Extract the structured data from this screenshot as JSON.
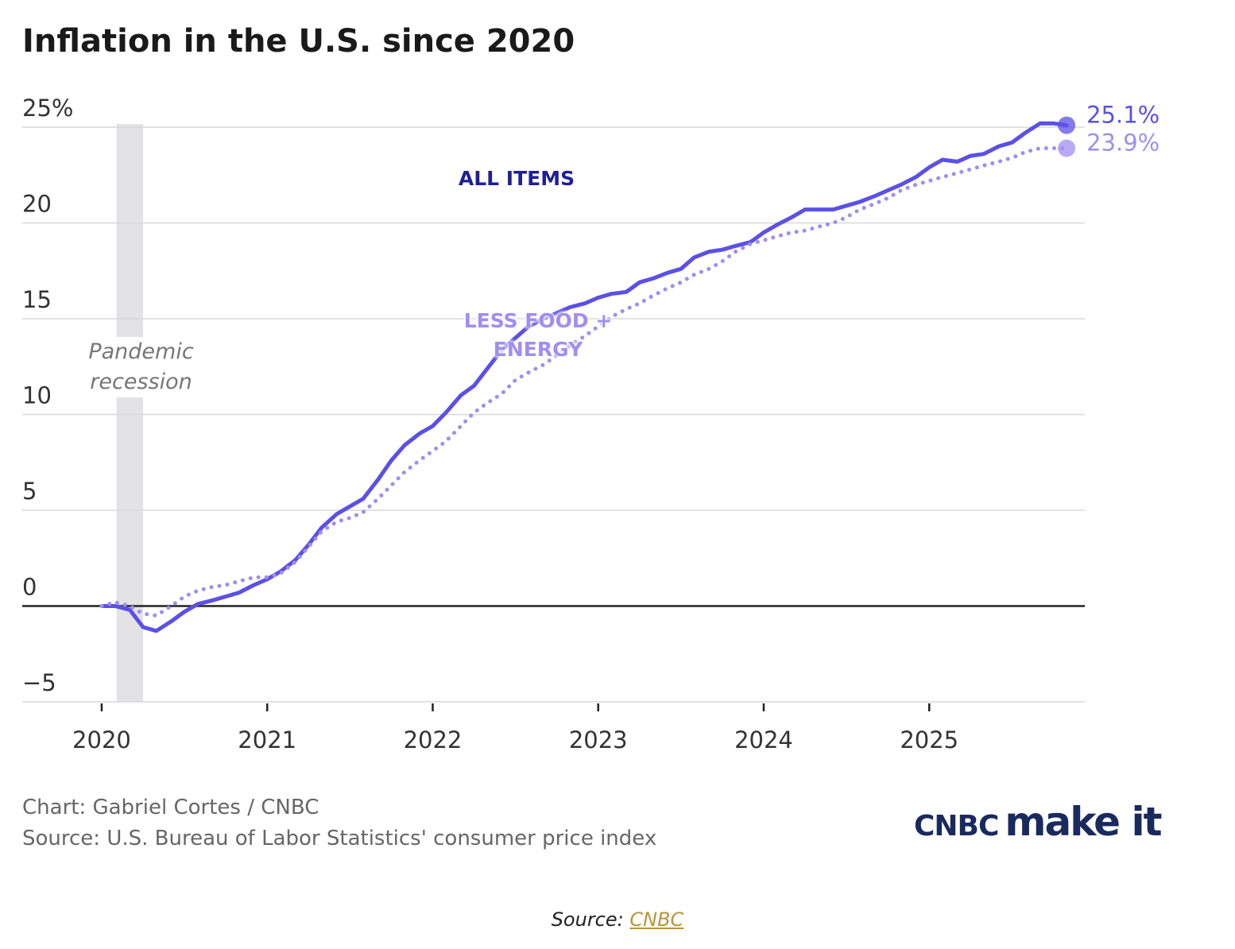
{
  "chart_data": {
    "type": "line",
    "title": "Inflation in the U.S. since 2020",
    "x": [
      2020.0,
      2020.08,
      2020.17,
      2020.25,
      2020.33,
      2020.42,
      2020.5,
      2020.58,
      2020.67,
      2020.75,
      2020.83,
      2020.92,
      2021.0,
      2021.08,
      2021.17,
      2021.25,
      2021.33,
      2021.42,
      2021.5,
      2021.58,
      2021.67,
      2021.75,
      2021.83,
      2021.92,
      2022.0,
      2022.08,
      2022.17,
      2022.25,
      2022.33,
      2022.42,
      2022.5,
      2022.58,
      2022.67,
      2022.75,
      2022.83,
      2022.92,
      2023.0,
      2023.08,
      2023.17,
      2023.25,
      2023.33,
      2023.42,
      2023.5,
      2023.58,
      2023.67,
      2023.75,
      2023.83,
      2023.92,
      2024.0,
      2024.08,
      2024.17,
      2024.25,
      2024.33,
      2024.42,
      2024.5,
      2024.58,
      2024.67,
      2024.75,
      2024.83,
      2024.92,
      2025.0,
      2025.08,
      2025.17,
      2025.25,
      2025.33,
      2025.42,
      2025.5,
      2025.58,
      2025.67,
      2025.75,
      2025.83
    ],
    "series": [
      {
        "name": "ALL ITEMS",
        "color": "#5b50e6",
        "label_color": "#1f1f96",
        "dotted": false,
        "values": [
          0,
          0,
          -0.2,
          -1.1,
          -1.3,
          -0.8,
          -0.3,
          0.1,
          0.3,
          0.5,
          0.7,
          1.1,
          1.4,
          1.8,
          2.4,
          3.2,
          4.1,
          4.8,
          5.2,
          5.6,
          6.6,
          7.6,
          8.4,
          9.0,
          9.4,
          10.1,
          11.0,
          11.5,
          12.4,
          13.4,
          14.0,
          14.6,
          15.0,
          15.3,
          15.6,
          15.8,
          16.1,
          16.3,
          16.4,
          16.9,
          17.1,
          17.4,
          17.6,
          18.2,
          18.5,
          18.6,
          18.8,
          19.0,
          19.5,
          19.9,
          20.3,
          20.7,
          20.7,
          20.7,
          20.9,
          21.1,
          21.4,
          21.7,
          22.0,
          22.4,
          22.9,
          23.3,
          23.2,
          23.5,
          23.6,
          24.0,
          24.2,
          24.7,
          25.2,
          25.2,
          25.1
        ],
        "value_labels": [
          null,
          null,
          null,
          null,
          null,
          null,
          null,
          null,
          null,
          null,
          null,
          null,
          null,
          null,
          null,
          null,
          null,
          null,
          null,
          null,
          null,
          null,
          null,
          null,
          null,
          null,
          null,
          null,
          null,
          null,
          null,
          null,
          null,
          null,
          null,
          null,
          null,
          null,
          null,
          null,
          null,
          null,
          null,
          null,
          null,
          null,
          null,
          null,
          null,
          null,
          null,
          null,
          null,
          null,
          null,
          null,
          null,
          null,
          null,
          null,
          null,
          null,
          null,
          null,
          null,
          null,
          null,
          null,
          null,
          null,
          "25.1%"
        ]
      },
      {
        "name": "LESS FOOD + ENERGY",
        "color": "#a08ef0",
        "label_color": "#a08ef0",
        "dotted": true,
        "values": [
          0,
          0.2,
          0,
          -0.4,
          -0.5,
          0,
          0.5,
          0.8,
          1.0,
          1.1,
          1.3,
          1.5,
          1.5,
          1.7,
          2.3,
          3.1,
          3.9,
          4.4,
          4.6,
          4.9,
          5.6,
          6.3,
          7.0,
          7.6,
          8.1,
          8.6,
          9.4,
          10.1,
          10.6,
          11.1,
          11.8,
          12.2,
          12.6,
          13.1,
          13.6,
          14.1,
          14.6,
          15.1,
          15.5,
          15.8,
          16.2,
          16.6,
          16.9,
          17.3,
          17.6,
          18.0,
          18.5,
          18.9,
          19.1,
          19.3,
          19.5,
          19.6,
          19.8,
          20.0,
          20.3,
          20.7,
          21.0,
          21.3,
          21.7,
          22.0,
          22.2,
          22.4,
          22.6,
          22.8,
          23.0,
          23.2,
          23.4,
          23.7,
          23.9,
          23.9,
          23.9
        ],
        "value_labels": [
          null,
          null,
          null,
          null,
          null,
          null,
          null,
          null,
          null,
          null,
          null,
          null,
          null,
          null,
          null,
          null,
          null,
          null,
          null,
          null,
          null,
          null,
          null,
          null,
          null,
          null,
          null,
          null,
          null,
          null,
          null,
          null,
          null,
          null,
          null,
          null,
          null,
          null,
          null,
          null,
          null,
          null,
          null,
          null,
          null,
          null,
          null,
          null,
          null,
          null,
          null,
          null,
          null,
          null,
          null,
          null,
          null,
          null,
          null,
          null,
          null,
          null,
          null,
          null,
          null,
          null,
          null,
          null,
          null,
          null,
          "23.9%"
        ]
      }
    ],
    "shade": {
      "label": "Pandemic recession",
      "x": [
        2020.09,
        2020.25
      ]
    },
    "xlim": [
      2019.52,
      2025.94
    ],
    "xticks": [
      2020,
      2021,
      2022,
      2023,
      2024,
      2025
    ],
    "ylim": [
      -5,
      25
    ],
    "yticks": [
      {
        "value": -5,
        "label": "−5"
      },
      0,
      5,
      10,
      15,
      20,
      {
        "value": 25,
        "label": "25%"
      }
    ],
    "grid": true,
    "credit": "Chart: Gabriel Cortes / CNBC",
    "source": "Source: U.S. Bureau of Labor Statistics' consumer price index",
    "logo": {
      "brand": "CNBC",
      "product": "make it"
    }
  },
  "caption": {
    "prefix": "Source:",
    "link": "CNBC"
  }
}
